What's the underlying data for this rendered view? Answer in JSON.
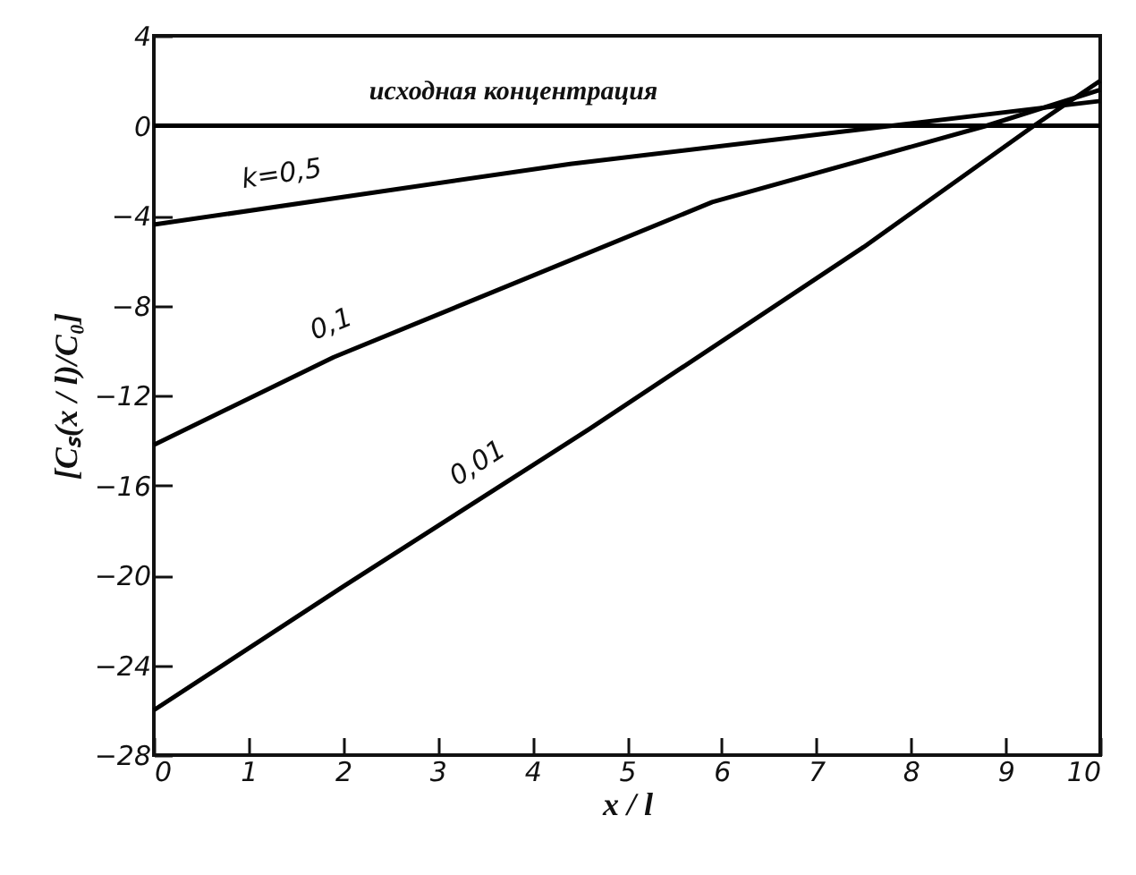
{
  "chart_data": {
    "type": "line",
    "xlabel": "x / l",
    "ylabel": "[Cₛ(x / l)/C₀]",
    "xlim": [
      0,
      10
    ],
    "xticks": [
      0,
      1,
      2,
      3,
      4,
      5,
      6,
      7,
      8,
      9,
      10
    ],
    "ylim": [
      -28,
      4
    ],
    "yticks": [
      -28,
      -24,
      -20,
      -16,
      -12,
      -8,
      -4,
      0,
      4
    ],
    "grid": false,
    "legend": false,
    "marker": "none",
    "line_style": "solid",
    "series": [
      {
        "name": "исходная концентрация",
        "color": "#000000",
        "x": [
          0,
          10
        ],
        "values": [
          0,
          0
        ]
      },
      {
        "name": "k=0,5",
        "color": "#000000",
        "x": [
          0,
          4.4,
          7.8,
          10
        ],
        "values": [
          -4.4,
          -1.7,
          0,
          1.1
        ]
      },
      {
        "name": "0,1",
        "color": "#000000",
        "x": [
          0,
          1.9,
          5.9,
          8.8,
          10
        ],
        "values": [
          -14.2,
          -10.3,
          -3.4,
          0,
          1.6
        ]
      },
      {
        "name": "0,01",
        "color": "#000000",
        "x": [
          0,
          2,
          4.6,
          7.5,
          9.3,
          10
        ],
        "values": [
          -26,
          -20.5,
          -13.5,
          -5.4,
          0,
          2
        ]
      }
    ]
  }
}
